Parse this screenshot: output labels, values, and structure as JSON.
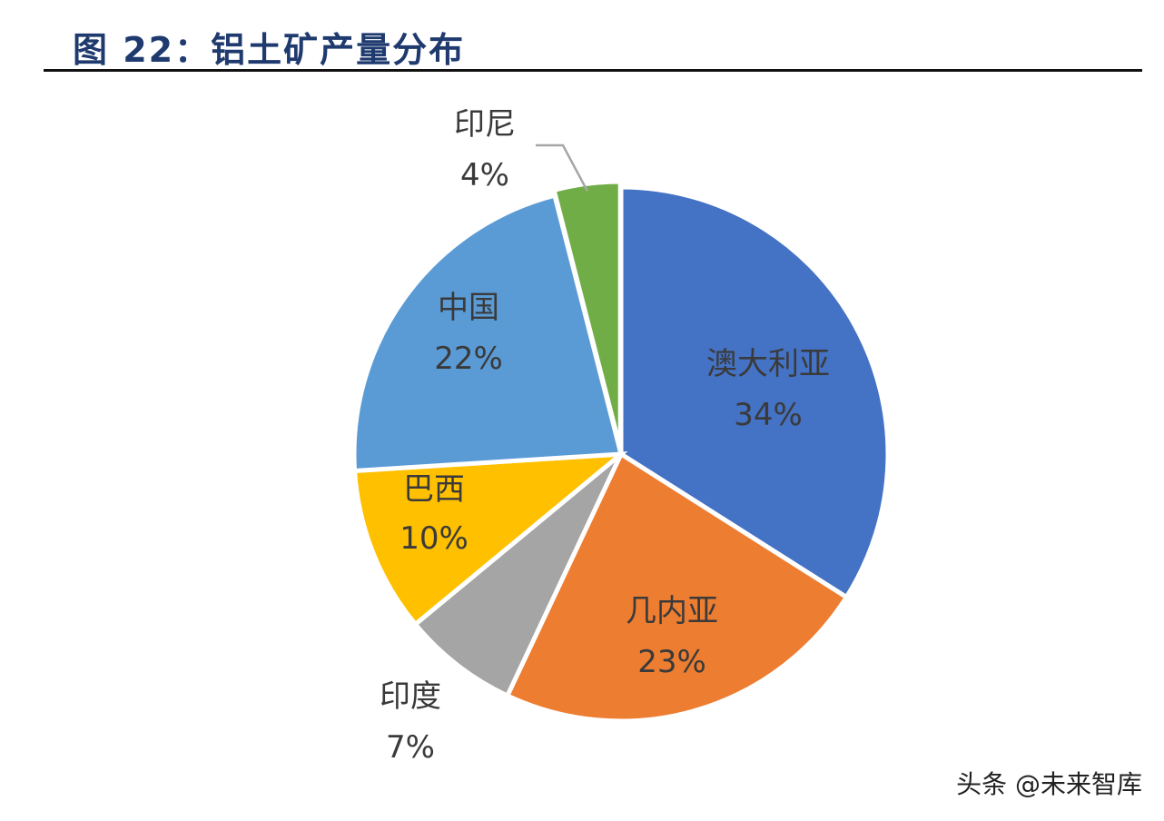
{
  "title": "图 22：铝土矿产量分布",
  "watermark": "头条 @未来智库",
  "chart_data": {
    "type": "pie",
    "title": "图 22：铝土矿产量分布",
    "start_angle_deg": 0,
    "direction": "clockwise",
    "slices": [
      {
        "name": "澳大利亚",
        "value": 34,
        "label": "34%",
        "color": "#4472C4"
      },
      {
        "name": "几内亚",
        "value": 23,
        "label": "23%",
        "color": "#ED7D31"
      },
      {
        "name": "印度",
        "value": 7,
        "label": "7%",
        "color": "#A5A5A5"
      },
      {
        "name": "巴西",
        "value": 10,
        "label": "10%",
        "color": "#FFC000"
      },
      {
        "name": "中国",
        "value": 22,
        "label": "22%",
        "color": "#5B9BD5"
      },
      {
        "name": "印尼",
        "value": 4,
        "label": "4%",
        "color": "#70AD47"
      }
    ]
  }
}
